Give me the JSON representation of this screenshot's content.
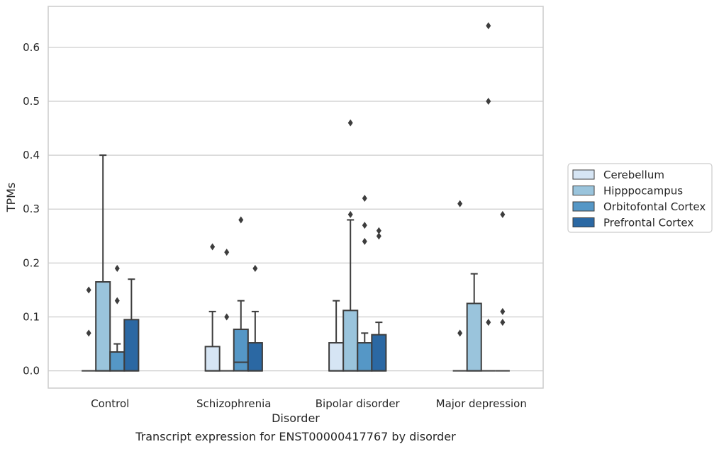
{
  "chart_data": {
    "type": "boxplot",
    "caption": "Transcript expression for ENST00000417767 by disorder",
    "xlabel": "Disorder",
    "ylabel": "TPMs",
    "ylim": [
      -0.032,
      0.676
    ],
    "yticks": [
      0.0,
      0.1,
      0.2,
      0.3,
      0.4,
      0.5,
      0.6
    ],
    "ytick_labels": [
      "0.0",
      "0.1",
      "0.2",
      "0.3",
      "0.4",
      "0.5",
      "0.6"
    ],
    "grid": true,
    "legend_position": "right",
    "categories": [
      "Control",
      "Schizophrenia",
      "Bipolar disorder",
      "Major depression"
    ],
    "series": [
      {
        "name": "Cerebellum",
        "color": "#d6e5f4",
        "boxes": [
          {
            "q1": 0.0,
            "median": 0.0,
            "q3": 0.0,
            "whisker_low": 0.0,
            "whisker_high": 0.0,
            "outliers": [
              0.07,
              0.15
            ]
          },
          {
            "q1": 0.0,
            "median": 0.0,
            "q3": 0.045,
            "whisker_low": 0.0,
            "whisker_high": 0.11,
            "outliers": [
              0.23
            ]
          },
          {
            "q1": 0.0,
            "median": 0.0,
            "q3": 0.052,
            "whisker_low": 0.0,
            "whisker_high": 0.13,
            "outliers": []
          },
          {
            "q1": 0.0,
            "median": 0.0,
            "q3": 0.0,
            "whisker_low": 0.0,
            "whisker_high": 0.0,
            "outliers": [
              0.07,
              0.31
            ]
          }
        ]
      },
      {
        "name": "Hipppocampus",
        "color": "#9ac4dc",
        "boxes": [
          {
            "q1": 0.0,
            "median": 0.0,
            "q3": 0.165,
            "whisker_low": 0.0,
            "whisker_high": 0.4,
            "outliers": []
          },
          {
            "q1": 0.0,
            "median": 0.0,
            "q3": 0.0,
            "whisker_low": 0.0,
            "whisker_high": 0.0,
            "outliers": [
              0.1,
              0.22
            ]
          },
          {
            "q1": 0.0,
            "median": 0.0,
            "q3": 0.112,
            "whisker_low": 0.0,
            "whisker_high": 0.28,
            "outliers": [
              0.29,
              0.46
            ]
          },
          {
            "q1": 0.0,
            "median": 0.0,
            "q3": 0.125,
            "whisker_low": 0.0,
            "whisker_high": 0.18,
            "outliers": []
          }
        ]
      },
      {
        "name": "Orbitofontal Cortex",
        "color": "#5597c6",
        "boxes": [
          {
            "q1": 0.0,
            "median": 0.0,
            "q3": 0.035,
            "whisker_low": 0.0,
            "whisker_high": 0.05,
            "outliers": [
              0.13,
              0.19
            ]
          },
          {
            "q1": 0.0,
            "median": 0.016,
            "q3": 0.077,
            "whisker_low": 0.0,
            "whisker_high": 0.13,
            "outliers": [
              0.28
            ]
          },
          {
            "q1": 0.0,
            "median": 0.0,
            "q3": 0.052,
            "whisker_low": 0.0,
            "whisker_high": 0.07,
            "outliers": [
              0.24,
              0.27,
              0.32
            ]
          },
          {
            "q1": 0.0,
            "median": 0.0,
            "q3": 0.0,
            "whisker_low": 0.0,
            "whisker_high": 0.0,
            "outliers": [
              0.09,
              0.5,
              0.64
            ]
          }
        ]
      },
      {
        "name": "Prefrontal Cortex",
        "color": "#2b68a3",
        "boxes": [
          {
            "q1": 0.0,
            "median": 0.0,
            "q3": 0.095,
            "whisker_low": 0.0,
            "whisker_high": 0.17,
            "outliers": []
          },
          {
            "q1": 0.0,
            "median": 0.0,
            "q3": 0.052,
            "whisker_low": 0.0,
            "whisker_high": 0.11,
            "outliers": [
              0.19
            ]
          },
          {
            "q1": 0.0,
            "median": 0.0,
            "q3": 0.067,
            "whisker_low": 0.0,
            "whisker_high": 0.09,
            "outliers": [
              0.25,
              0.26
            ]
          },
          {
            "q1": 0.0,
            "median": 0.0,
            "q3": 0.0,
            "whisker_low": 0.0,
            "whisker_high": 0.0,
            "outliers": [
              0.09,
              0.11,
              0.29
            ]
          }
        ]
      }
    ]
  }
}
